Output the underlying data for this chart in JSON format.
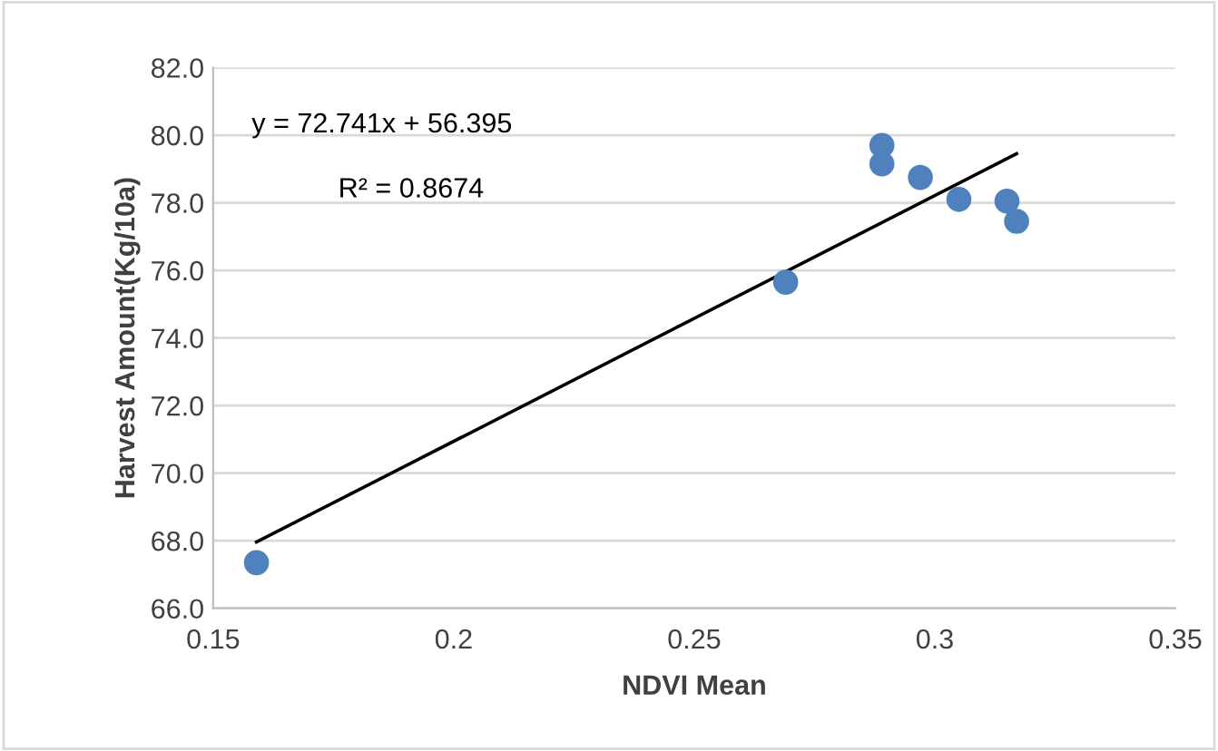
{
  "chart_data": {
    "type": "scatter",
    "xlabel": "NDVI Mean",
    "ylabel": "Harvest Amount(Kg/10a)",
    "xlim": [
      0.15,
      0.35
    ],
    "xticks": [
      0.15,
      0.2,
      0.25,
      0.3,
      0.35
    ],
    "ylim": [
      66.0,
      82.0
    ],
    "yticks": [
      {
        "value": 66,
        "label": "66.0"
      },
      {
        "value": 68,
        "label": "68.0"
      },
      {
        "value": 70,
        "label": "70.0"
      },
      {
        "value": 72,
        "label": "72.0"
      },
      {
        "value": 74,
        "label": "74.0"
      },
      {
        "value": 76,
        "label": "76.0"
      },
      {
        "value": 78,
        "label": "78.0"
      },
      {
        "value": 80,
        "label": "80.0"
      },
      {
        "value": 82,
        "label": "82.0"
      }
    ],
    "grid": "y",
    "annotations": [
      "y = 72.741x + 56.395",
      "R² = 0.8674"
    ],
    "series": [
      {
        "marker": "circle",
        "color": "#4f81bd",
        "x": [
          0.159,
          0.269,
          0.289,
          0.289,
          0.297,
          0.305,
          0.315,
          0.317
        ],
        "values": [
          67.35,
          75.65,
          79.7,
          79.15,
          78.75,
          78.1,
          78.05,
          77.45
        ]
      },
      {
        "type": "line",
        "marker": "none",
        "color": "#000000",
        "x": [
          0.159,
          0.317
        ],
        "values": [
          67.96,
          79.45
        ]
      }
    ]
  }
}
